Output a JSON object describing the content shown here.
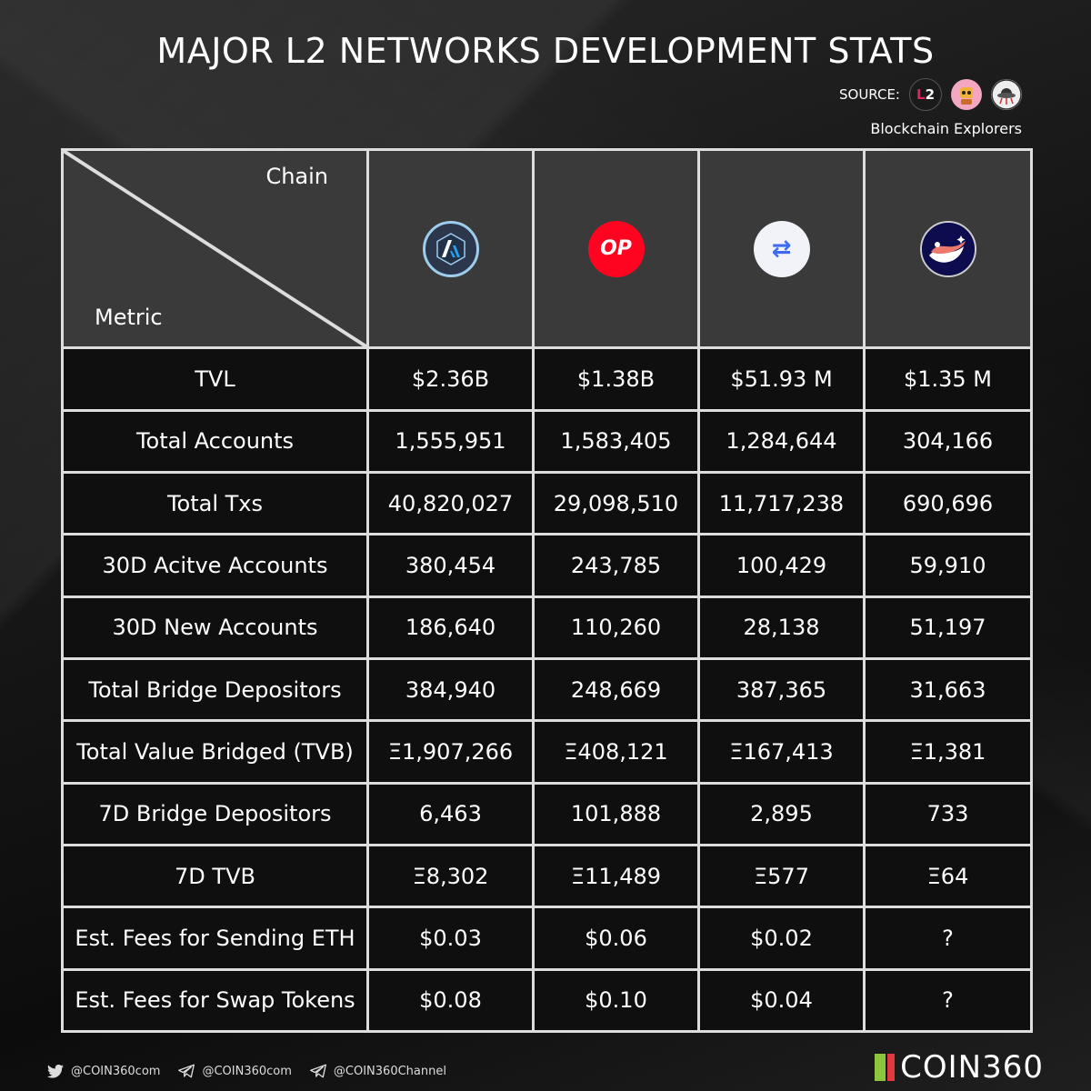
{
  "title": "MAJOR L2 NETWORKS DEVELOPMENT STATS",
  "source": {
    "label": "SOURCE:",
    "icons": [
      "l2beat-icon",
      "bot-avatar-icon",
      "ufo-icon"
    ],
    "l2_text_a": "L",
    "l2_text_b": "2",
    "note": "Blockchain Explorers"
  },
  "table": {
    "corner": {
      "chain": "Chain",
      "metric": "Metric"
    },
    "chains": [
      {
        "icon": "arbitrum-logo"
      },
      {
        "icon": "optimism-logo",
        "text": "OP"
      },
      {
        "icon": "zksync-logo",
        "text": "⇄"
      },
      {
        "icon": "starknet-logo"
      }
    ],
    "rows": [
      {
        "metric": "TVL",
        "values": [
          "$2.36B",
          "$1.38B",
          "$51.93 M",
          "$1.35 M"
        ]
      },
      {
        "metric": "Total Accounts",
        "values": [
          "1,555,951",
          "1,583,405",
          "1,284,644",
          "304,166"
        ]
      },
      {
        "metric": "Total Txs",
        "values": [
          "40,820,027",
          "29,098,510",
          "11,717,238",
          "690,696"
        ]
      },
      {
        "metric": "30D Acitve Accounts",
        "values": [
          "380,454",
          "243,785",
          "100,429",
          "59,910"
        ]
      },
      {
        "metric": "30D New Accounts",
        "values": [
          "186,640",
          "110,260",
          "28,138",
          "51,197"
        ]
      },
      {
        "metric": "Total Bridge Depositors",
        "values": [
          "384,940",
          "248,669",
          "387,365",
          "31,663"
        ]
      },
      {
        "metric": "Total Value Bridged (TVB)",
        "values": [
          "Ξ1,907,266",
          "Ξ408,121",
          "Ξ167,413",
          "Ξ1,381"
        ]
      },
      {
        "metric": "7D Bridge Depositors",
        "values": [
          "6,463",
          "101,888",
          "2,895",
          "733"
        ]
      },
      {
        "metric": "7D TVB",
        "values": [
          "Ξ8,302",
          "Ξ11,489",
          "Ξ577",
          "Ξ64"
        ]
      },
      {
        "metric": "Est. Fees for Sending ETH",
        "values": [
          "$0.03",
          "$0.06",
          "$0.02",
          "?"
        ]
      },
      {
        "metric": "Est. Fees for Swap Tokens",
        "values": [
          "$0.08",
          "$0.10",
          "$0.04",
          "?"
        ]
      }
    ]
  },
  "footer": {
    "twitter": "@COIN360com",
    "telegram_1": "@COIN360com",
    "telegram_2": "@COIN360Channel",
    "brand": "COIN360"
  },
  "colors": {
    "header_bg": "#3a3a3a",
    "cell_bg": "#0f0f0f",
    "grid": "#dddddd",
    "op_red": "#ff0420",
    "brand_green": "#8cc63f",
    "brand_red": "#e03a3e"
  }
}
